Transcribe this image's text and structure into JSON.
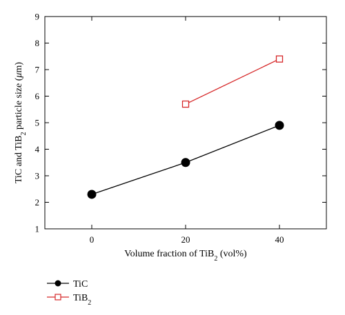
{
  "chart_data": {
    "type": "line",
    "xlabel": {
      "main": "Volume fraction of TiB",
      "sub": "2",
      "tail": " (vol%)"
    },
    "ylabel": {
      "part1": "TiC and TiB",
      "sub": "2",
      "part2": " particle size (",
      "mu": "μ",
      "part3": "m)"
    },
    "x_ticks": [
      0,
      20,
      40
    ],
    "y_ticks": [
      1,
      2,
      3,
      4,
      5,
      6,
      7,
      8,
      9
    ],
    "xlim": [
      -10,
      50
    ],
    "ylim": [
      1,
      9
    ],
    "grid": false,
    "legend_position": "bottom-left, below plot",
    "series": [
      {
        "name": "TiC",
        "name_main": "TiC",
        "name_sub": "",
        "color": "#000000",
        "marker": "filled-circle",
        "x": [
          0,
          20,
          40
        ],
        "y": [
          2.3,
          3.5,
          4.9
        ]
      },
      {
        "name": "TiB2",
        "name_main": "TiB",
        "name_sub": "2",
        "color": "#d62728",
        "marker": "open-square",
        "x": [
          20,
          40
        ],
        "y": [
          5.7,
          7.4
        ]
      }
    ]
  }
}
